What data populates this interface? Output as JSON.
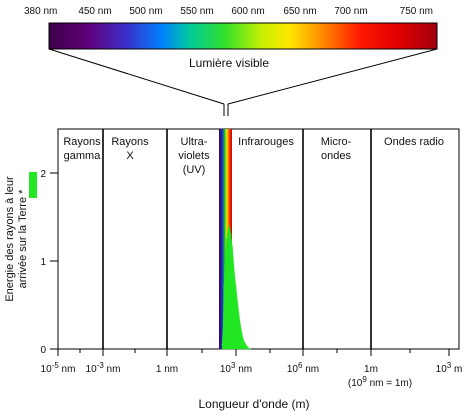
{
  "visible_spectrum": {
    "tick_labels": [
      "380 nm",
      "450 nm",
      "500 nm",
      "550 nm",
      "600 nm",
      "650 nm",
      "700 nm",
      "750 nm"
    ],
    "caption": "Lumière visible"
  },
  "regions": [
    {
      "label_lines": [
        "Rayons",
        "gamma"
      ]
    },
    {
      "label_lines": [
        "Rayons",
        "X"
      ]
    },
    {
      "label_lines": [
        "Ultra-",
        "violets",
        "(UV)"
      ]
    },
    {
      "label_lines": [
        "Infrarouges"
      ]
    },
    {
      "label_lines": [
        "Micro-",
        "ondes"
      ]
    },
    {
      "label_lines": [
        "Ondes radio"
      ]
    }
  ],
  "chart_data": {
    "type": "area",
    "xlabel": "Longueur d'onde (m)",
    "ylabel_lines": [
      "Energie des rayons à leur",
      "arrivée sur la Terre *"
    ],
    "ylim": [
      0,
      2.5
    ],
    "y_ticks": [
      "0",
      "1",
      "2"
    ],
    "x_scale": "log",
    "x_tick_labels": [
      {
        "base": "10",
        "exp": "-5",
        "unit": " nm"
      },
      {
        "base": "10",
        "exp": "-3",
        "unit": " nm"
      },
      {
        "base": "1 nm",
        "exp": "",
        "unit": ""
      },
      {
        "base": "10",
        "exp": "3",
        "unit": " nm"
      },
      {
        "base": "10",
        "exp": "6",
        "unit": " nm"
      },
      {
        "base": "1m",
        "exp": "",
        "unit": ""
      },
      {
        "base": "10",
        "exp": "3",
        "unit": " m"
      }
    ],
    "x_note": {
      "base": "(10",
      "exp": "9",
      "unit": " nm = 1m)"
    },
    "series": [
      {
        "color": "#22e622",
        "x_nm": [
          250,
          280,
          300,
          320,
          350,
          400,
          450,
          500,
          550,
          600,
          700,
          800,
          900,
          1000,
          1200,
          1500,
          1800,
          2000,
          2500,
          3000,
          4000
        ],
        "y": [
          0.05,
          0.3,
          0.7,
          0.9,
          1.05,
          1.25,
          1.35,
          1.4,
          1.35,
          1.3,
          1.15,
          0.95,
          0.8,
          0.7,
          0.5,
          0.3,
          0.18,
          0.12,
          0.06,
          0.03,
          0.0
        ]
      }
    ]
  },
  "colors": {
    "legend_swatch": "#22e622",
    "frame": "#000000"
  }
}
